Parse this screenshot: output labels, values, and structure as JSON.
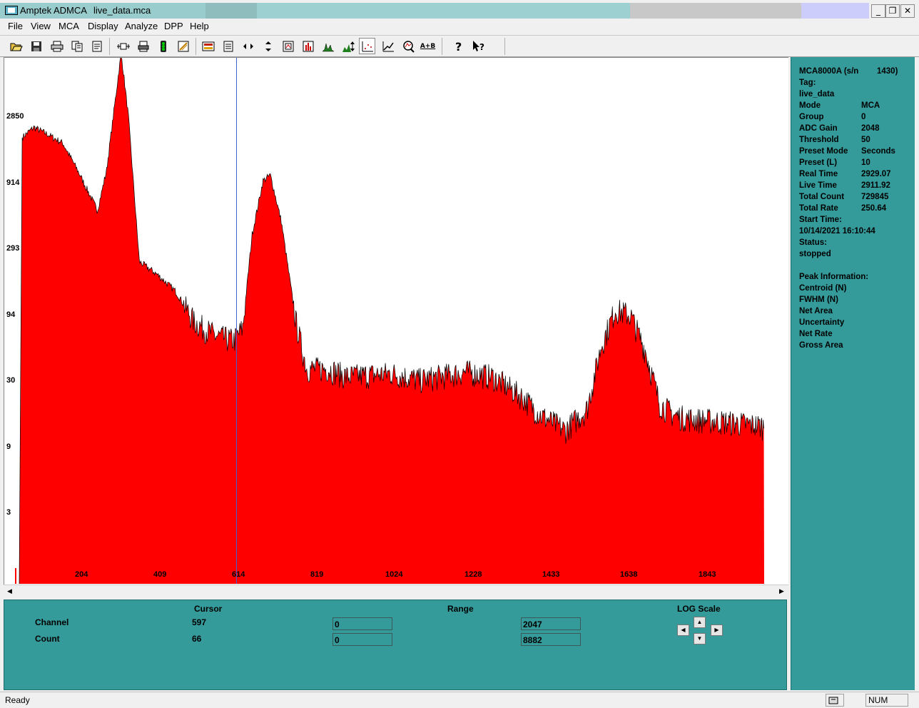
{
  "window": {
    "app_title": "Amptek ADMCA",
    "file_name": "live_data.mca",
    "min_glyph": "_",
    "restore_glyph": "❐",
    "close_glyph": "✕"
  },
  "menu": [
    "File",
    "View",
    "MCA",
    "Display",
    "Analyze",
    "DPP",
    "Help"
  ],
  "toolbar": {
    "icons": [
      "open-icon",
      "save-icon",
      "print-icon",
      "copy-icon",
      "report-icon",
      "connect-icon",
      "printer-setup-icon",
      "acquire-icon",
      "clear-icon",
      "color-icon",
      "list-icon",
      "horizontal-zoom-icon",
      "vertical-zoom-icon",
      "zoom-box-icon",
      "bar-chart-icon",
      "peaks-icon",
      "autoscale-icon",
      "log-scale-icon",
      "calibrate-icon",
      "roi-search-icon",
      "a-plus-b-icon",
      "help-icon",
      "context-help-icon"
    ],
    "a_plus_b_label": "A+B"
  },
  "chart_data": {
    "type": "area",
    "y_scale": "log",
    "y_ticks": [
      "2850",
      "914",
      "293",
      "94",
      "30",
      "9",
      "3"
    ],
    "x_ticks": [
      "204",
      "409",
      "614",
      "819",
      "1024",
      "1228",
      "1433",
      "1638",
      "1843"
    ],
    "xlim": [
      0,
      2047
    ],
    "series": [
      {
        "color": "#ff0000",
        "points": [
          [
            0,
            1
          ],
          [
            8,
            2100
          ],
          [
            40,
            2500
          ],
          [
            80,
            2200
          ],
          [
            120,
            1900
          ],
          [
            160,
            1200
          ],
          [
            215,
            600
          ],
          [
            240,
            1200
          ],
          [
            280,
            9000
          ],
          [
            300,
            3000
          ],
          [
            330,
            250
          ],
          [
            380,
            200
          ],
          [
            430,
            150
          ],
          [
            480,
            90
          ],
          [
            540,
            70
          ],
          [
            590,
            65
          ],
          [
            614,
            80
          ],
          [
            640,
            400
          ],
          [
            670,
            1000
          ],
          [
            690,
            1100
          ],
          [
            720,
            500
          ],
          [
            760,
            90
          ],
          [
            790,
            40
          ],
          [
            850,
            40
          ],
          [
            900,
            35
          ],
          [
            1024,
            37
          ],
          [
            1100,
            33
          ],
          [
            1228,
            38
          ],
          [
            1300,
            35
          ],
          [
            1380,
            25
          ],
          [
            1433,
            18
          ],
          [
            1500,
            14
          ],
          [
            1560,
            20
          ],
          [
            1600,
            60
          ],
          [
            1638,
            110
          ],
          [
            1680,
            100
          ],
          [
            1720,
            55
          ],
          [
            1760,
            22
          ],
          [
            1800,
            18
          ],
          [
            1843,
            17
          ],
          [
            1950,
            16
          ],
          [
            2047,
            15
          ]
        ]
      }
    ],
    "cursor_channel": 597,
    "grid": false
  },
  "bottom_panel": {
    "cursor_header": "Cursor",
    "range_header": "Range",
    "log_scale_header": "LOG Scale",
    "channel_label": "Channel",
    "count_label": "Count",
    "cursor_channel": "597",
    "cursor_count": "66",
    "range_channel_min": "0",
    "range_channel_max": "2047",
    "range_count_min": "0",
    "range_count_max": "8882"
  },
  "info_panel": {
    "device": "MCA8000A (s/n",
    "serial": "1430)",
    "tag_label": "Tag:",
    "tag_value": "live_data",
    "rows": [
      {
        "label": "Mode",
        "value": "MCA"
      },
      {
        "label": "Group",
        "value": "0"
      },
      {
        "label": "ADC Gain",
        "value": "2048"
      },
      {
        "label": "Threshold",
        "value": "50"
      },
      {
        "label": "Preset Mode",
        "value": "Seconds"
      },
      {
        "label": "Preset (L)",
        "value": "10"
      },
      {
        "label": "Real Time",
        "value": "2929.07"
      },
      {
        "label": "Live Time",
        "value": "2911.92"
      },
      {
        "label": "Total Count",
        "value": "729845"
      },
      {
        "label": "Total Rate",
        "value": "250.64"
      }
    ],
    "start_time_label": "Start Time:",
    "start_time_value": "10/14/2021 16:10:44",
    "status_label": "Status:",
    "status_value": "stopped",
    "peak_header": "Peak Information:",
    "peak_rows": [
      "Centroid (N)",
      "FWHM (N)",
      "Net Area",
      "Uncertainty",
      "Net Rate",
      "Gross Area"
    ]
  },
  "statusbar": {
    "text": "Ready",
    "num": "NUM"
  }
}
